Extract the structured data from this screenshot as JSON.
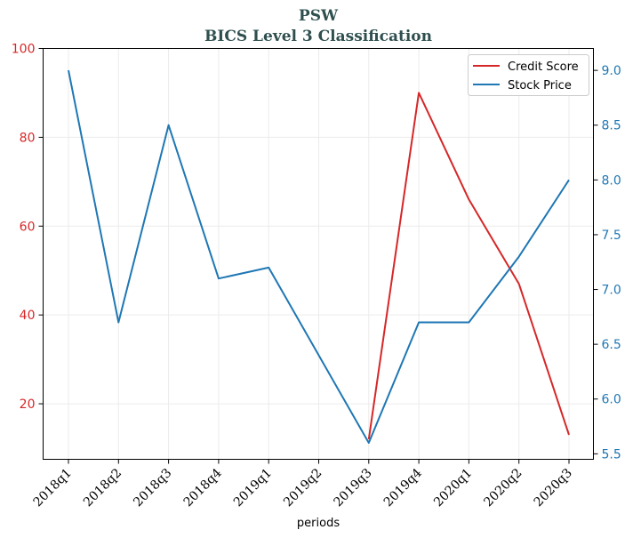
{
  "chart_data": {
    "type": "line",
    "title": "PSW",
    "subtitle": "BICS Level 3 Classification",
    "xlabel": "periods",
    "categories": [
      "2018q1",
      "2018q2",
      "2018q3",
      "2018q4",
      "2019q1",
      "2019q2",
      "2019q3",
      "2019q4",
      "2020q1",
      "2020q2",
      "2020q3"
    ],
    "y_left": {
      "ylim": [
        7.5,
        100
      ],
      "ticks": [
        20,
        40,
        60,
        80,
        100
      ],
      "color": "#d62728"
    },
    "y_right": {
      "ylim": [
        5.45,
        9.2
      ],
      "ticks": [
        5.5,
        6.0,
        6.5,
        7.0,
        7.5,
        8.0,
        8.5,
        9.0
      ],
      "tick_labels": [
        "5.5",
        "6.0",
        "6.5",
        "7.0",
        "7.5",
        "8.0",
        "8.5",
        "9.0"
      ],
      "color": "#1f77b4"
    },
    "grid": true,
    "legend_position": "top-right",
    "series": [
      {
        "name": "Credit Score",
        "axis": "left",
        "color": "#d62728",
        "values": [
          null,
          null,
          null,
          null,
          null,
          null,
          12,
          90,
          66,
          47,
          13
        ]
      },
      {
        "name": "Stock Price",
        "axis": "right",
        "color": "#1f77b4",
        "values": [
          9.0,
          6.7,
          8.5,
          7.1,
          7.2,
          null,
          5.6,
          6.7,
          6.7,
          7.3,
          8.0
        ]
      }
    ]
  }
}
